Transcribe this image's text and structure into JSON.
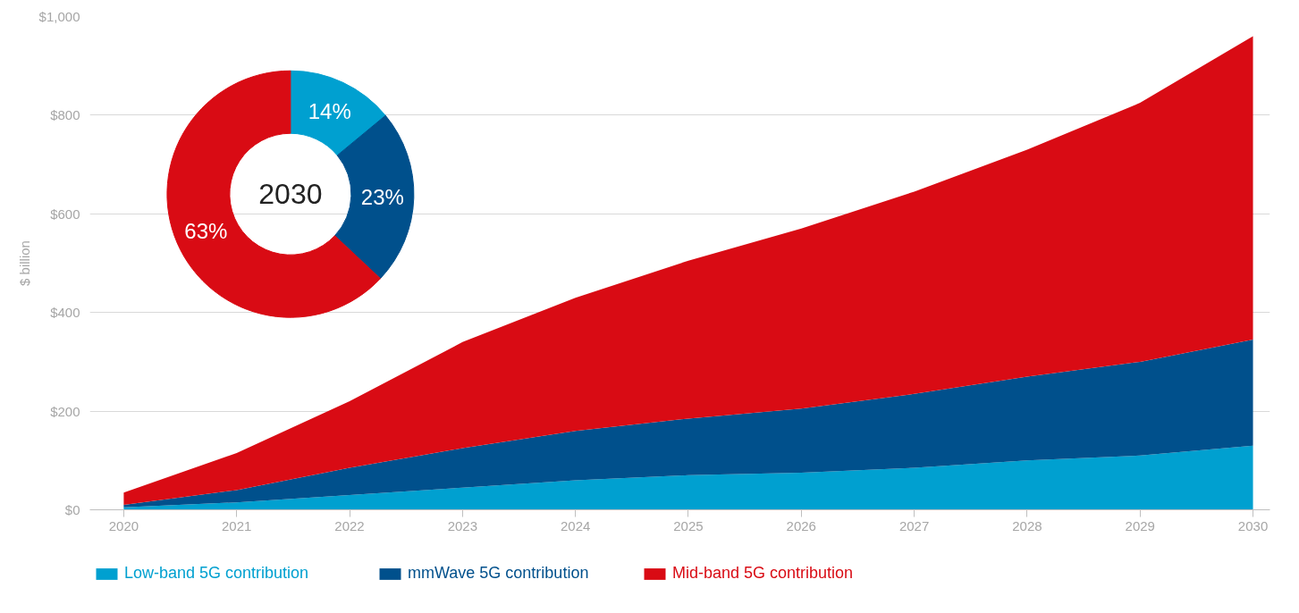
{
  "chart_data": [
    {
      "type": "area",
      "stacked": true,
      "x": [
        2020,
        2021,
        2022,
        2023,
        2024,
        2025,
        2026,
        2027,
        2028,
        2029,
        2030
      ],
      "ylabel": "$ billion",
      "xlim": [
        2019.7,
        2030.15
      ],
      "ylim": [
        0,
        1000
      ],
      "xticks": [
        2020,
        2021,
        2022,
        2023,
        2024,
        2025,
        2026,
        2027,
        2028,
        2029,
        2030
      ],
      "yticks": [
        {
          "value": 0,
          "label": "$0"
        },
        {
          "value": 200,
          "label": "$200"
        },
        {
          "value": 400,
          "label": "$400"
        },
        {
          "value": 600,
          "label": "$600"
        },
        {
          "value": 800,
          "label": "$800"
        },
        {
          "value": 1000,
          "label": "$1,000"
        }
      ],
      "grid": "y",
      "legend": "bottom",
      "series": [
        {
          "name": "Low-band 5G contribution",
          "color": "#00a0d0",
          "values": [
            5,
            15,
            30,
            45,
            60,
            70,
            75,
            85,
            100,
            110,
            130
          ]
        },
        {
          "name": "mmWave 5G contribution",
          "color": "#00508c",
          "values": [
            5,
            25,
            55,
            80,
            100,
            115,
            130,
            150,
            170,
            190,
            215
          ]
        },
        {
          "name": "Mid-band 5G contribution",
          "color": "#d90b14",
          "values": [
            25,
            75,
            135,
            215,
            270,
            320,
            365,
            410,
            460,
            525,
            615
          ]
        }
      ]
    },
    {
      "type": "donut",
      "title": "2030",
      "categories": [
        null,
        null,
        null
      ],
      "values": [
        14,
        23,
        63
      ],
      "colors": [
        "#00a0d0",
        "#00508c",
        "#d90b14"
      ],
      "value_labels": [
        "14%",
        "23%",
        "63%"
      ]
    }
  ]
}
